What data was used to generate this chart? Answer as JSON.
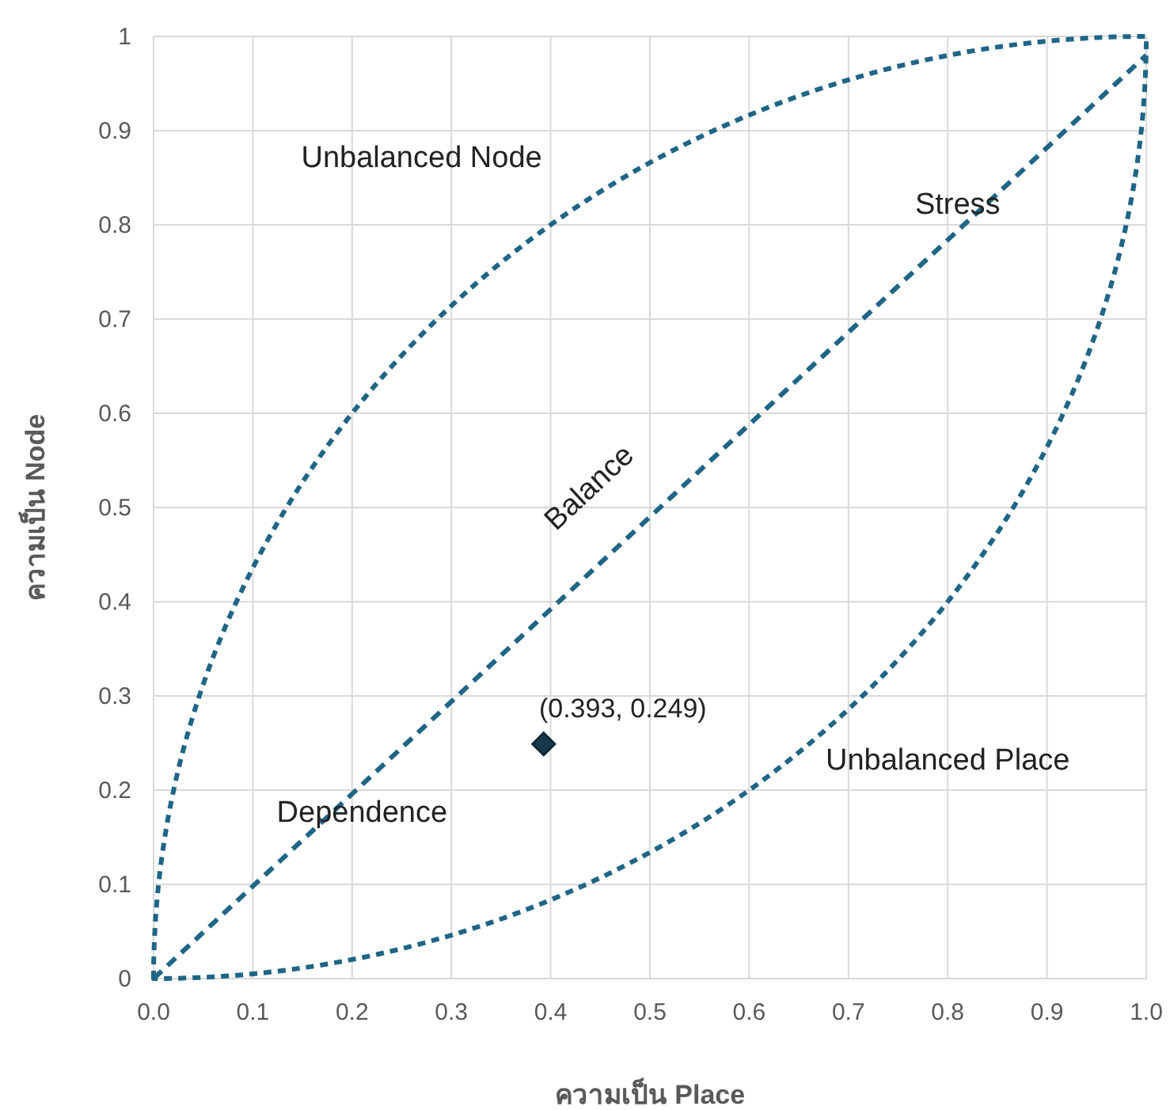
{
  "chart_data": {
    "type": "line",
    "xlabel": "ความเป็น Place",
    "ylabel": "ความเป็น Node",
    "xlim": [
      0,
      1
    ],
    "ylim": [
      0,
      1
    ],
    "xticks": [
      {
        "value": 0,
        "label": "0.0"
      },
      0.1,
      0.2,
      0.3,
      0.4,
      0.5,
      0.6,
      0.7,
      0.8,
      0.9,
      {
        "value": 1,
        "label": "1.0"
      }
    ],
    "yticks": [
      0,
      0.1,
      0.2,
      0.3,
      0.4,
      0.5,
      0.6,
      0.7,
      0.8,
      0.9,
      1
    ],
    "grid": true,
    "series": [
      {
        "type": "line",
        "color": "#1f6586",
        "line_style": "dashed",
        "marker": "none",
        "x": [
          0,
          1
        ],
        "values": [
          0,
          0.98
        ]
      },
      {
        "type": "scatter",
        "color": "#17394a",
        "marker": "diamond",
        "x": [
          0.393
        ],
        "values": [
          0.249
        ],
        "value_labels": [
          "(0.393, 0.249)"
        ]
      }
    ],
    "annotations": [
      "Unbalanced Node",
      "Stress",
      "Balance",
      "Dependence",
      "Unbalanced Place"
    ]
  }
}
